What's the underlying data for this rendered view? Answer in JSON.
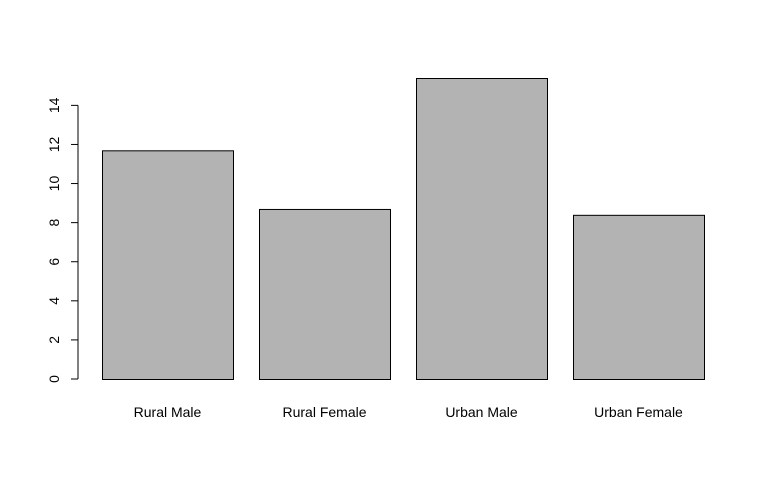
{
  "chart_data": {
    "type": "bar",
    "categories": [
      "Rural Male",
      "Rural Female",
      "Urban Male",
      "Urban Female"
    ],
    "values": [
      11.7,
      8.7,
      15.4,
      8.4
    ],
    "title": "",
    "xlabel": "",
    "ylabel": "",
    "ylim": [
      0,
      15.4
    ],
    "yticks": [
      0,
      2,
      4,
      6,
      8,
      10,
      12,
      14
    ],
    "grid": false,
    "legend": "none",
    "colors": {
      "bar_fill": "#b3b3b3",
      "bar_stroke": "#000000",
      "axis": "#000000"
    }
  }
}
